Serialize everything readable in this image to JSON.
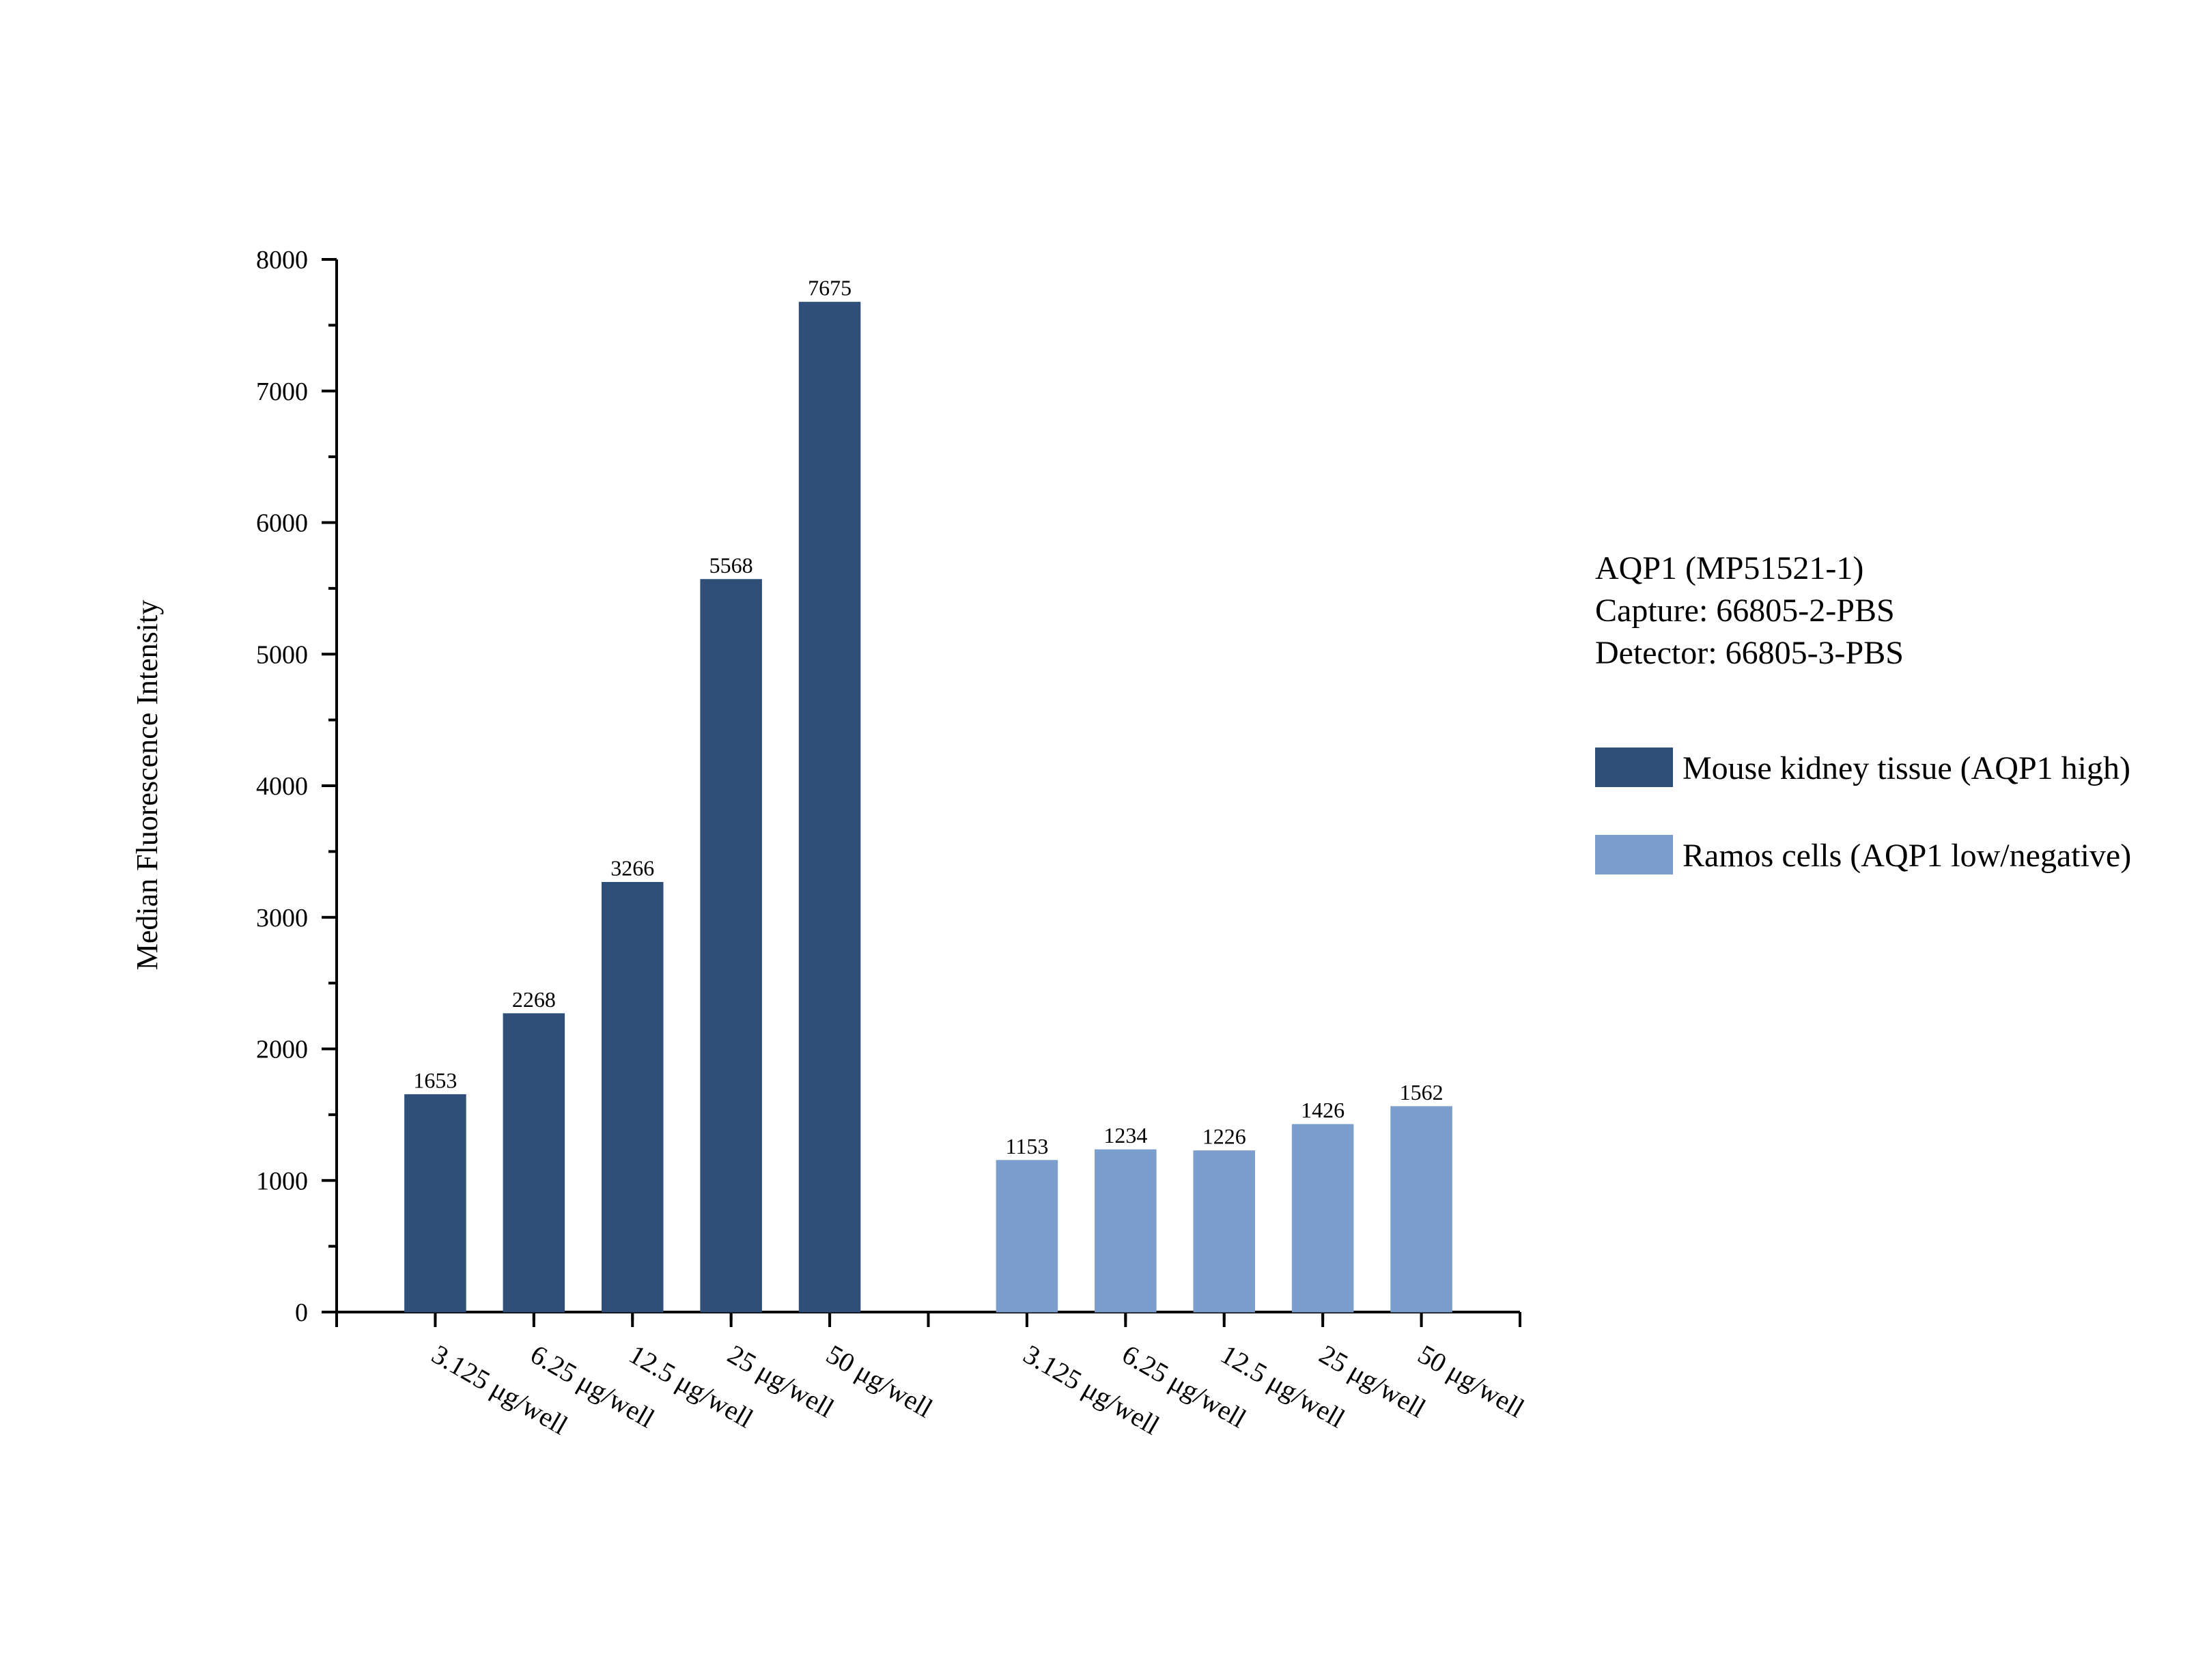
{
  "chart_data": {
    "type": "bar",
    "ylabel": "Median Fluorescence Intensity",
    "ylim": [
      0,
      8000
    ],
    "yticks": [
      0,
      1000,
      2000,
      3000,
      4000,
      5000,
      6000,
      7000,
      8000
    ],
    "grid": false,
    "legend_position": "right",
    "info_lines": [
      "AQP1 (MP51521-1)",
      "Capture: 66805-2-PBS",
      "Detector: 66805-3-PBS"
    ],
    "series": [
      {
        "name": "Mouse kidney tissue (AQP1 high)",
        "color": "#2f4f79",
        "categories": [
          "3.125 μg/well",
          "6.25 μg/well",
          "12.5 μg/well",
          "25 μg/well",
          "50 μg/well"
        ],
        "values": [
          1653,
          2268,
          3266,
          5568,
          7675
        ]
      },
      {
        "name": "Ramos cells (AQP1 low/negative)",
        "color": "#7c9ecd",
        "categories": [
          "3.125 μg/well",
          "6.25 μg/well",
          "12.5 μg/well",
          "25 μg/well",
          "50 μg/well"
        ],
        "values": [
          1153,
          1234,
          1226,
          1426,
          1562
        ]
      }
    ]
  }
}
